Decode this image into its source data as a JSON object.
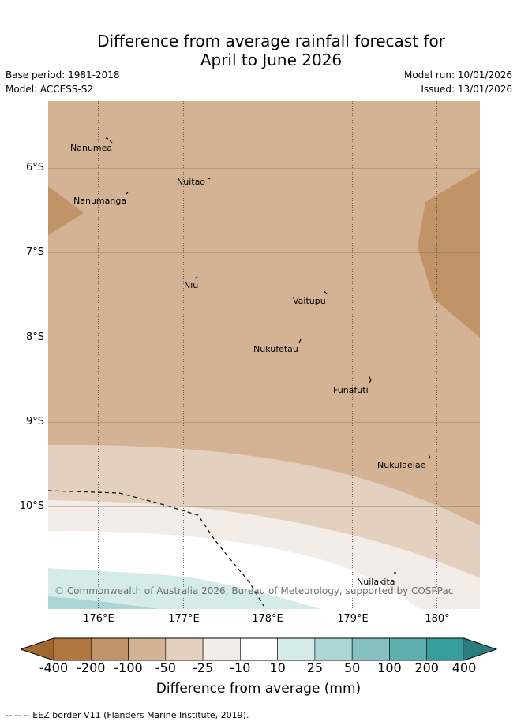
{
  "title_line1": "Difference from average rainfall forecast for",
  "title_line2": "April to June 2026",
  "base_period": "Base period: 1981-2018",
  "model": "Model: ACCESS-S2",
  "model_run": "Model run: 10/01/2026",
  "issued": "Issued: 13/01/2026",
  "latitude_labels": [
    "6°S",
    "7°S",
    "8°S",
    "9°S",
    "10°S"
  ],
  "longitude_labels": [
    "176°E",
    "177°E",
    "178°E",
    "179°E",
    "180°"
  ],
  "islands": [
    "Nanumea",
    "Nuitao",
    "Nanumanga",
    "Niu",
    "Vaitupu",
    "Nukufetau",
    "Funafuti",
    "Nukulaelae",
    "Nuilakita"
  ],
  "copyright": "© Commonwealth of Australia 2026, Bureau of Meteorology, supported by COSPPac",
  "legend": {
    "ticks": [
      "-400",
      "-200",
      "-100",
      "-50",
      "-25",
      "-10",
      "10",
      "25",
      "50",
      "100",
      "200",
      "400"
    ],
    "colors": [
      "#a0682e",
      "#b0773e",
      "#c09467",
      "#d3b394",
      "#e3d0bf",
      "#f4ece6",
      "#ffffff",
      "#d4ebea",
      "#acd6d6",
      "#85c1c1",
      "#5eafaf",
      "#379e9e",
      "#2b7d7d"
    ],
    "label": "Difference from average (mm)"
  },
  "footnote": "--  --  -- EEZ border V11 (Flanders Marine Institute, 2019)."
}
